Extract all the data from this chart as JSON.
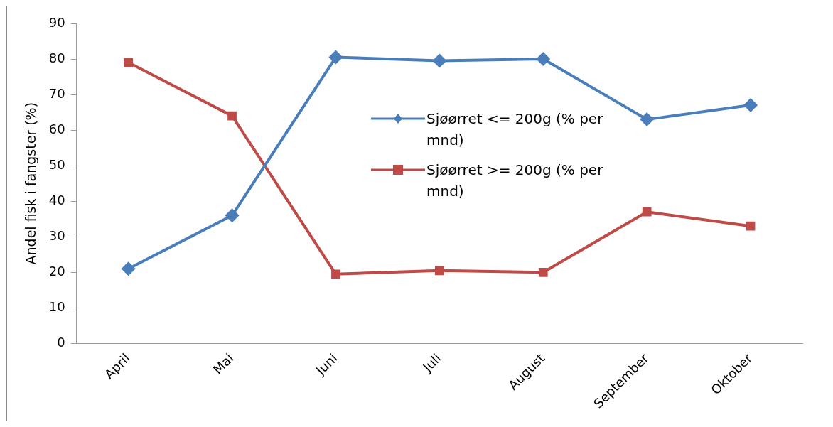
{
  "chart_data": {
    "type": "line",
    "ylabel": "Andel fisk i fangster (%)",
    "categories": [
      "April",
      "Mai",
      "Juni",
      "Juli",
      "August",
      "September",
      "Oktober"
    ],
    "series": [
      {
        "name": "Sjøørret <= 200g (% per mnd)",
        "color": "#4a7ebb",
        "marker": "diamond",
        "values": [
          21,
          36,
          80.5,
          79.5,
          80,
          63,
          67
        ]
      },
      {
        "name": "Sjøørret >= 200g (% per mnd)",
        "color": "#be4b48",
        "marker": "square",
        "values": [
          79,
          64,
          19.5,
          20.5,
          20,
          37,
          33
        ]
      }
    ],
    "ylim": [
      0,
      90
    ],
    "yticks": [
      0,
      10,
      20,
      30,
      40,
      50,
      60,
      70,
      80,
      90
    ],
    "grid": false,
    "legend": "center",
    "line_style": "solid"
  }
}
